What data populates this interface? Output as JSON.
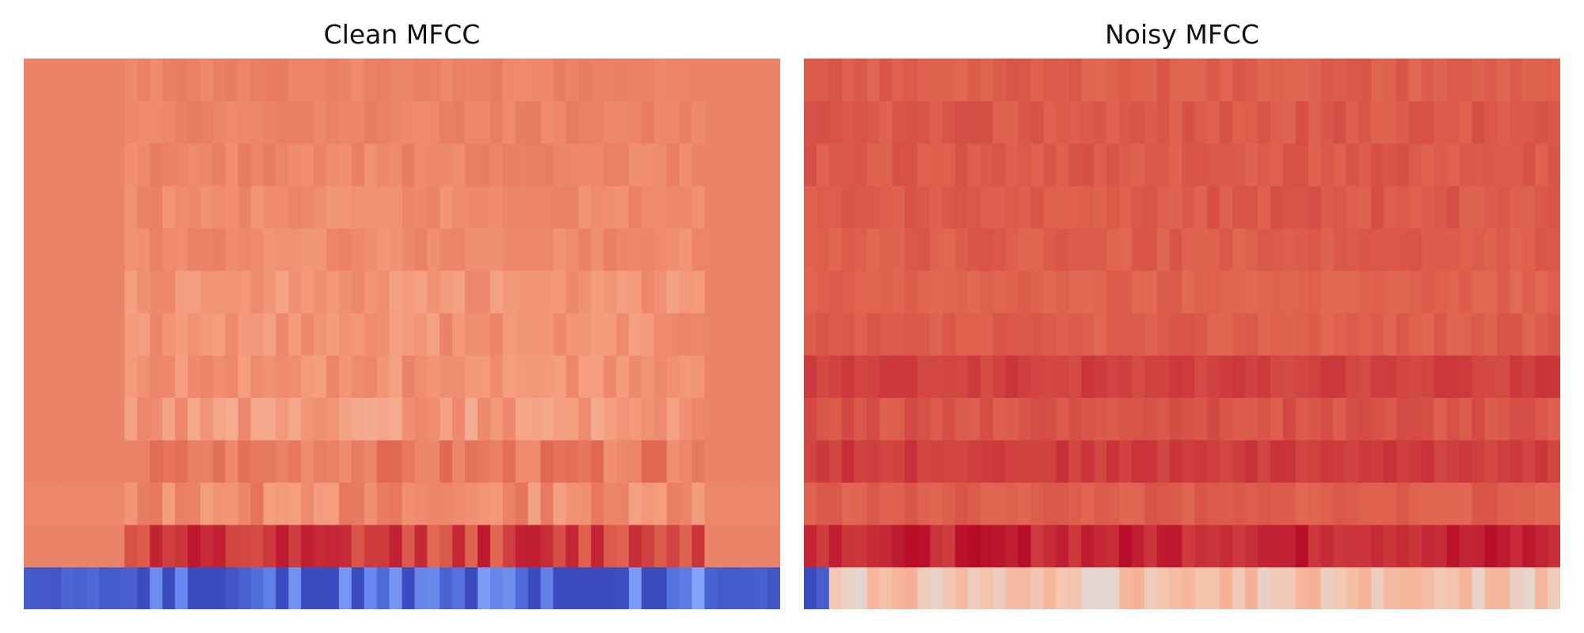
{
  "colors": {
    "colormap": "coolwarm",
    "low": "#3b4cc0",
    "mid": "#dddddd",
    "high": "#b40426",
    "background": "#ffffff"
  },
  "chart_data": [
    {
      "type": "heatmap",
      "title": "Clean MFCC",
      "colormap": "coolwarm",
      "axes_visible": false,
      "grid": false,
      "n_rows": 13,
      "n_cols": 60,
      "row_order": "row 0 drawn at bottom",
      "value_range": [
        0.0,
        1.0
      ],
      "rows": [
        {
          "index": 0,
          "base": 0.0,
          "spread": 0.3,
          "seed": 11
        },
        {
          "index": 1,
          "base": 0.9,
          "spread": 0.07,
          "seed": 12
        },
        {
          "index": 2,
          "base": 0.74,
          "spread": 0.06,
          "seed": 13
        },
        {
          "index": 3,
          "base": 0.78,
          "spread": 0.05,
          "seed": 14
        },
        {
          "index": 4,
          "base": 0.7,
          "spread": 0.05,
          "seed": 15
        },
        {
          "index": 5,
          "base": 0.72,
          "spread": 0.04,
          "seed": 16
        },
        {
          "index": 6,
          "base": 0.72,
          "spread": 0.04,
          "seed": 17
        },
        {
          "index": 7,
          "base": 0.71,
          "spread": 0.04,
          "seed": 18
        },
        {
          "index": 8,
          "base": 0.74,
          "spread": 0.03,
          "seed": 19
        },
        {
          "index": 9,
          "base": 0.74,
          "spread": 0.03,
          "seed": 20
        },
        {
          "index": 10,
          "base": 0.75,
          "spread": 0.03,
          "seed": 21
        },
        {
          "index": 11,
          "base": 0.76,
          "spread": 0.02,
          "seed": 22
        },
        {
          "index": 12,
          "base": 0.76,
          "spread": 0.02,
          "seed": 23
        }
      ],
      "silent_columns_start": [
        0,
        8
      ],
      "silent_columns_end": [
        54,
        60
      ],
      "silent_values": [
        0.0,
        0.76,
        0.75,
        0.76,
        0.76,
        0.76,
        0.76,
        0.76,
        0.76,
        0.76,
        0.76,
        0.76,
        0.76
      ]
    },
    {
      "type": "heatmap",
      "title": "Noisy MFCC",
      "colormap": "coolwarm",
      "axes_visible": false,
      "grid": false,
      "n_rows": 13,
      "n_cols": 60,
      "row_order": "row 0 drawn at bottom",
      "value_range": [
        0.0,
        1.0
      ],
      "rows": [
        {
          "index": 0,
          "base": 0.58,
          "spread": 0.06,
          "seed": 31
        },
        {
          "index": 1,
          "base": 0.95,
          "spread": 0.04,
          "seed": 32
        },
        {
          "index": 2,
          "base": 0.85,
          "spread": 0.02,
          "seed": 33
        },
        {
          "index": 3,
          "base": 0.91,
          "spread": 0.02,
          "seed": 34
        },
        {
          "index": 4,
          "base": 0.87,
          "spread": 0.02,
          "seed": 35
        },
        {
          "index": 5,
          "base": 0.9,
          "spread": 0.02,
          "seed": 36
        },
        {
          "index": 6,
          "base": 0.85,
          "spread": 0.02,
          "seed": 37
        },
        {
          "index": 7,
          "base": 0.84,
          "spread": 0.02,
          "seed": 38
        },
        {
          "index": 8,
          "base": 0.85,
          "spread": 0.02,
          "seed": 39
        },
        {
          "index": 9,
          "base": 0.86,
          "spread": 0.02,
          "seed": 40
        },
        {
          "index": 10,
          "base": 0.86,
          "spread": 0.02,
          "seed": 41
        },
        {
          "index": 11,
          "base": 0.86,
          "spread": 0.02,
          "seed": 42
        },
        {
          "index": 12,
          "base": 0.85,
          "spread": 0.02,
          "seed": 43
        }
      ],
      "edge_columns": [
        0,
        1
      ],
      "edge_values": [
        0.0,
        0.05
      ]
    }
  ]
}
